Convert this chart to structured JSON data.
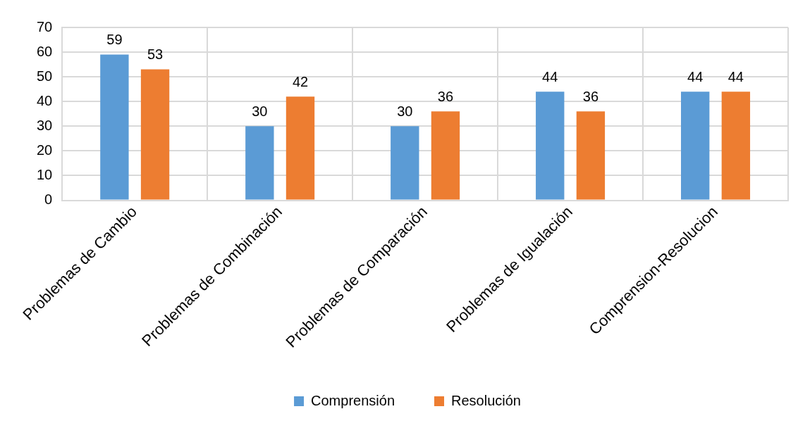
{
  "chart_data": {
    "type": "bar",
    "categories": [
      "Problemas de Cambio",
      "Problemas de Combinación",
      "Problemas de Comparación",
      "Problemas de Igualación",
      "Comprension-Resolucion"
    ],
    "series": [
      {
        "name": "Comprensión",
        "color": "#5b9bd5",
        "values": [
          59,
          30,
          30,
          44,
          44
        ]
      },
      {
        "name": "Resolución",
        "color": "#ed7d31",
        "values": [
          53,
          42,
          36,
          36,
          44
        ]
      }
    ],
    "ylim": [
      0,
      70
    ],
    "yticks": [
      0,
      10,
      20,
      30,
      40,
      50,
      60,
      70
    ],
    "grid": true,
    "legend": "bottom",
    "data_labels": true
  }
}
